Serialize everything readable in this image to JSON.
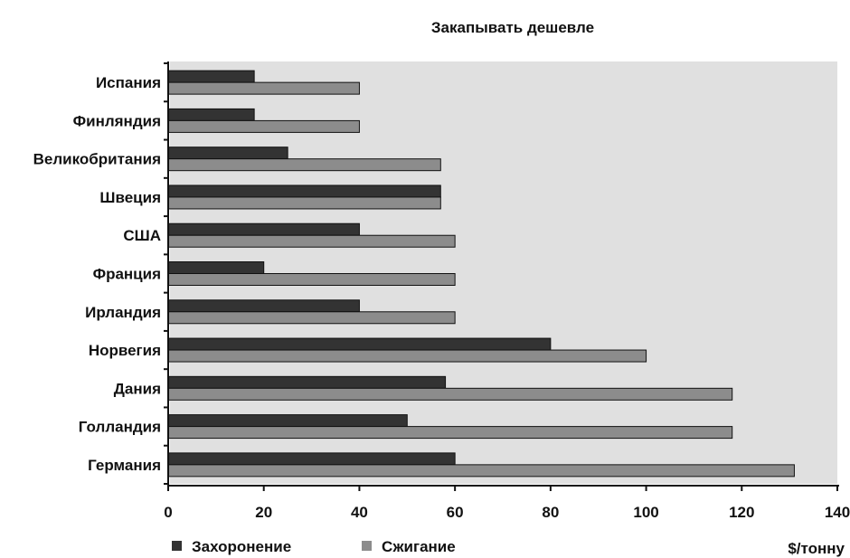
{
  "chart_data": {
    "type": "bar",
    "orientation": "horizontal",
    "title": "Закапывать дешевле",
    "xlabel": "$/тонну",
    "ylabel": "",
    "categories": [
      "Испания",
      "Финляндия",
      "Великобритания",
      "Швеция",
      "США",
      "Франция",
      "Ирландия",
      "Норвегия",
      "Дания",
      "Голландия",
      "Германия"
    ],
    "series": [
      {
        "name": "Захоронение",
        "color": "#333333",
        "values": [
          18,
          18,
          25,
          57,
          40,
          20,
          40,
          80,
          58,
          50,
          60
        ]
      },
      {
        "name": "Сжигание",
        "color": "#8c8c8c",
        "values": [
          40,
          40,
          57,
          57,
          60,
          60,
          60,
          100,
          118,
          118,
          131
        ]
      }
    ],
    "xlim": [
      0,
      140
    ],
    "xticks": [
      0,
      20,
      40,
      60,
      80,
      100,
      120,
      140
    ],
    "plot_background": "#e0e0e0",
    "grid": false,
    "legend_position": "bottom"
  }
}
